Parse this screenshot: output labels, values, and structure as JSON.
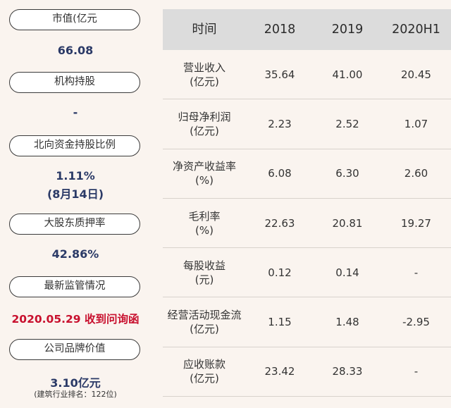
{
  "left_panel": [
    {
      "label": "市值(亿元",
      "value": "66.08"
    },
    {
      "label": "机构持股",
      "value": "-"
    },
    {
      "label": "北向资金持股比例",
      "value": "1.11%",
      "value2": "(8月14日)"
    },
    {
      "label": "大股东质押率",
      "value": "42.86%"
    },
    {
      "label": "最新监管情况",
      "value": "2020.05.29 收到问询函"
    },
    {
      "label": "公司品牌价值",
      "value": "3.10亿元",
      "note": "(建筑行业排名：122位)"
    }
  ],
  "table": {
    "headers": [
      "时间",
      "2018",
      "2019",
      "2020H1"
    ],
    "rows": [
      {
        "name": "营业收入",
        "unit": "(亿元)",
        "values": [
          "35.64",
          "41.00",
          "20.45"
        ]
      },
      {
        "name": "归母净利润",
        "unit": "(亿元)",
        "values": [
          "2.23",
          "2.52",
          "1.07"
        ]
      },
      {
        "name": "净资产收益率",
        "unit": "(%)",
        "values": [
          "6.08",
          "6.30",
          "2.60"
        ]
      },
      {
        "name": "毛利率",
        "unit": "(%)",
        "values": [
          "22.63",
          "20.81",
          "19.27"
        ]
      },
      {
        "name": "每股收益",
        "unit": "(元)",
        "values": [
          "0.12",
          "0.14",
          "-"
        ]
      },
      {
        "name": "经营活动现金流",
        "unit": "(亿元)",
        "values": [
          "1.15",
          "1.48",
          "-2.95"
        ]
      },
      {
        "name": "应收账款",
        "unit": "(亿元)",
        "values": [
          "23.42",
          "28.33",
          "-"
        ]
      }
    ]
  },
  "colors": {
    "value_text": "#2b3a67",
    "alert_text": "#c8102e",
    "header_bg": "#dcdcdc",
    "page_bg": "#faf4ef"
  }
}
